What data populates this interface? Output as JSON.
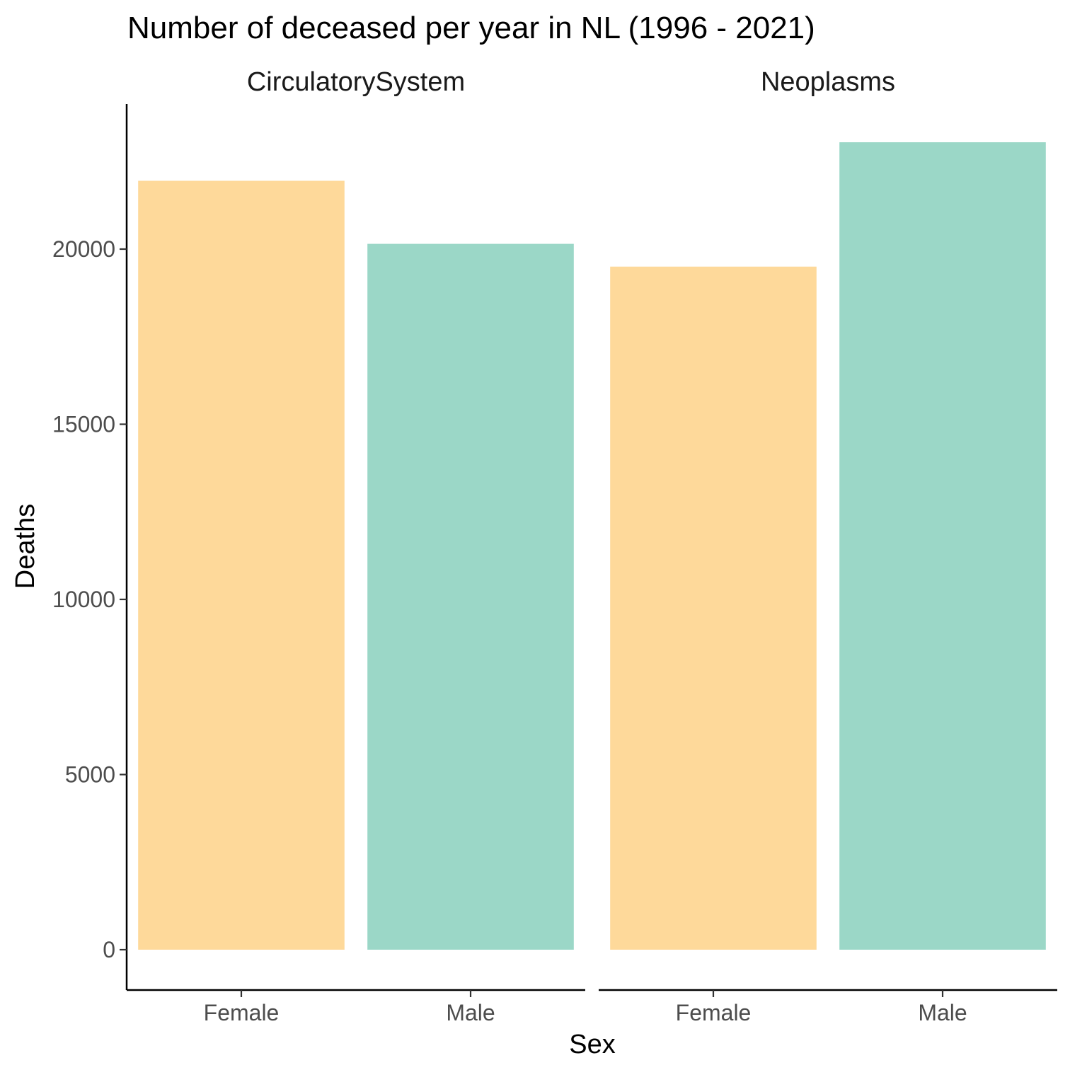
{
  "chart_data": {
    "type": "bar",
    "title": "Number of deceased per year in NL (1996 - 2021)",
    "xlabel": "Sex",
    "ylabel": "Deaths",
    "ylim": [
      0,
      25000
    ],
    "yticks": [
      0,
      5000,
      10000,
      15000,
      20000
    ],
    "ytick_labels": [
      "0",
      "5000",
      "10000",
      "15000",
      "20000"
    ],
    "categories": [
      "Female",
      "Male"
    ],
    "grid": false,
    "legend": "none",
    "colors": {
      "Female": "#FED99A",
      "Male": "#9BD7C7"
    },
    "facets": [
      {
        "label": "CirculatorySystem",
        "values": [
          21950,
          20150
        ]
      },
      {
        "label": "Neoplasms",
        "values": [
          19500,
          23050
        ]
      }
    ]
  }
}
